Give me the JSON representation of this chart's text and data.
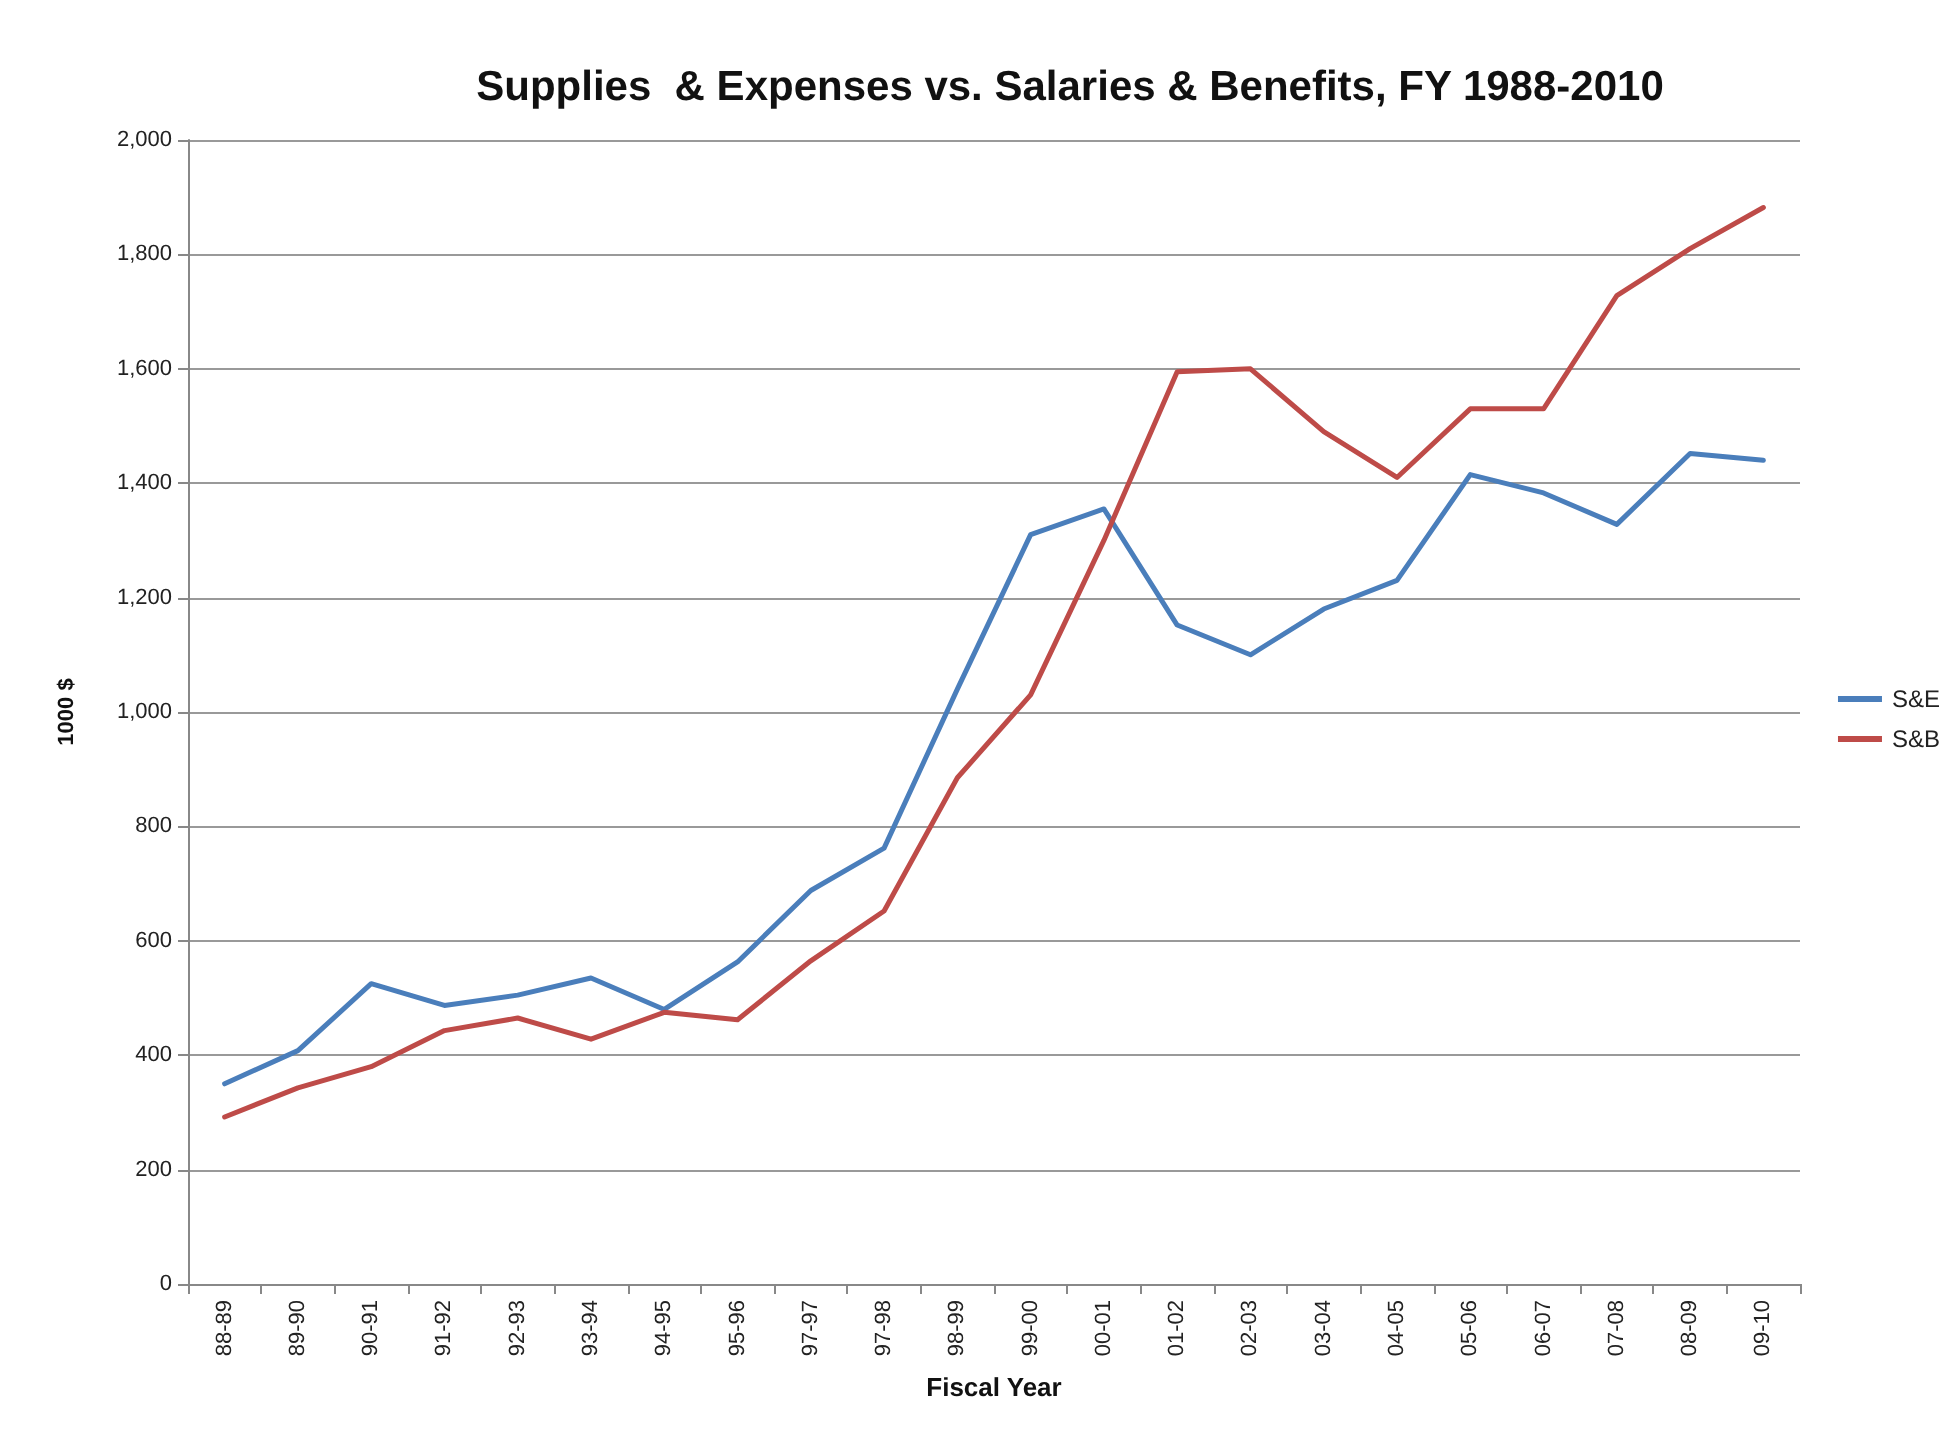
{
  "chart_data": {
    "type": "line",
    "title": "Supplies  & Expenses vs. Salaries & Benefits, FY 1988-2010",
    "xlabel": "Fiscal Year",
    "ylabel": "1000 $",
    "categories": [
      "88-89",
      "89-90",
      "90-91",
      "91-92",
      "92-93",
      "93-94",
      "94-95",
      "95-96",
      "97-97",
      "97-98",
      "98-99",
      "99-00",
      "00-01",
      "01-02",
      "02-03",
      "03-04",
      "04-05",
      "05-06",
      "06-07",
      "07-08",
      "08-09",
      "09-10"
    ],
    "series": [
      {
        "name": "S&E",
        "color": "#4a7ebb",
        "values": [
          350,
          408,
          525,
          487,
          505,
          535,
          480,
          563,
          688,
          762,
          1040,
          1310,
          1355,
          1152,
          1100,
          1180,
          1230,
          1415,
          1383,
          1328,
          1452,
          1440
        ]
      },
      {
        "name": "S&B",
        "color": "#be4b48",
        "values": [
          292,
          343,
          380,
          443,
          465,
          428,
          475,
          462,
          565,
          652,
          885,
          1030,
          1300,
          1595,
          1600,
          1490,
          1410,
          1530,
          1530,
          1728,
          1810,
          1882
        ]
      }
    ],
    "ylim": [
      0,
      2000
    ],
    "yticks": [
      0,
      200,
      400,
      600,
      800,
      {
        "value": 1000,
        "label": "1,000"
      },
      {
        "value": 1200,
        "label": "1,200"
      },
      {
        "value": 1400,
        "label": "1,400"
      },
      {
        "value": 1600,
        "label": "1,600"
      },
      {
        "value": 1800,
        "label": "1,800"
      },
      {
        "value": 2000,
        "label": "2,000"
      }
    ],
    "grid": "y",
    "legend": "right",
    "marker": "none",
    "line_style": "solid"
  }
}
